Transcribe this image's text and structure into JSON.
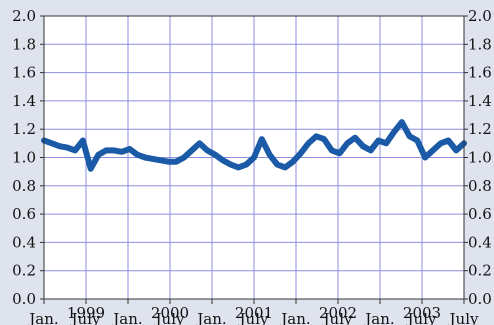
{
  "chart_data": {
    "type": "line",
    "title": "",
    "xlabel": "",
    "ylabel": "",
    "grid": true,
    "ylim": [
      0.0,
      2.0
    ],
    "xlim": [
      "1999-01",
      "2003-07"
    ],
    "y_ticks": [
      "0.0",
      "0.2",
      "0.4",
      "0.6",
      "0.8",
      "1.0",
      "1.2",
      "1.4",
      "1.6",
      "1.8",
      "2.0"
    ],
    "x_ticks": [
      {
        "month": "Jan.",
        "year": ""
      },
      {
        "month": "July",
        "year": "1999"
      },
      {
        "month": "Jan.",
        "year": ""
      },
      {
        "month": "July",
        "year": "2000"
      },
      {
        "month": "Jan.",
        "year": ""
      },
      {
        "month": "July",
        "year": "2001"
      },
      {
        "month": "Jan.",
        "year": ""
      },
      {
        "month": "July",
        "year": "2002"
      },
      {
        "month": "Jan.",
        "year": ""
      },
      {
        "month": "July",
        "year": "2003"
      },
      {
        "month": "July",
        "year": ""
      }
    ],
    "series": [
      {
        "color": "#1a5aa6",
        "x": [
          "1999-01",
          "1999-02",
          "1999-03",
          "1999-04",
          "1999-05",
          "1999-06",
          "1999-07",
          "1999-08",
          "1999-09",
          "1999-10",
          "1999-11",
          "1999-12",
          "2000-01",
          "2000-02",
          "2000-03",
          "2000-04",
          "2000-05",
          "2000-06",
          "2000-07",
          "2000-08",
          "2000-09",
          "2000-10",
          "2000-11",
          "2000-12",
          "2001-01",
          "2001-02",
          "2001-03",
          "2001-04",
          "2001-05",
          "2001-06",
          "2001-07",
          "2001-08",
          "2001-09",
          "2001-10",
          "2001-11",
          "2001-12",
          "2002-01",
          "2002-02",
          "2002-03",
          "2002-04",
          "2002-05",
          "2002-06",
          "2002-07",
          "2002-08",
          "2002-09",
          "2002-10",
          "2002-11",
          "2002-12",
          "2003-01",
          "2003-02",
          "2003-03",
          "2003-04",
          "2003-05",
          "2003-06",
          "2003-07"
        ],
        "values": [
          1.12,
          1.1,
          1.08,
          1.07,
          1.05,
          1.12,
          0.92,
          1.02,
          1.05,
          1.05,
          1.04,
          1.06,
          1.02,
          1.0,
          0.99,
          0.98,
          0.97,
          0.97,
          1.0,
          1.05,
          1.1,
          1.05,
          1.02,
          0.98,
          0.95,
          0.93,
          0.95,
          1.0,
          1.13,
          1.02,
          0.95,
          0.93,
          0.97,
          1.03,
          1.1,
          1.15,
          1.13,
          1.05,
          1.03,
          1.1,
          1.14,
          1.08,
          1.05,
          1.12,
          1.1,
          1.18,
          1.25,
          1.15,
          1.12,
          1.0,
          1.05,
          1.1,
          1.12,
          1.05,
          1.1
        ]
      }
    ]
  }
}
